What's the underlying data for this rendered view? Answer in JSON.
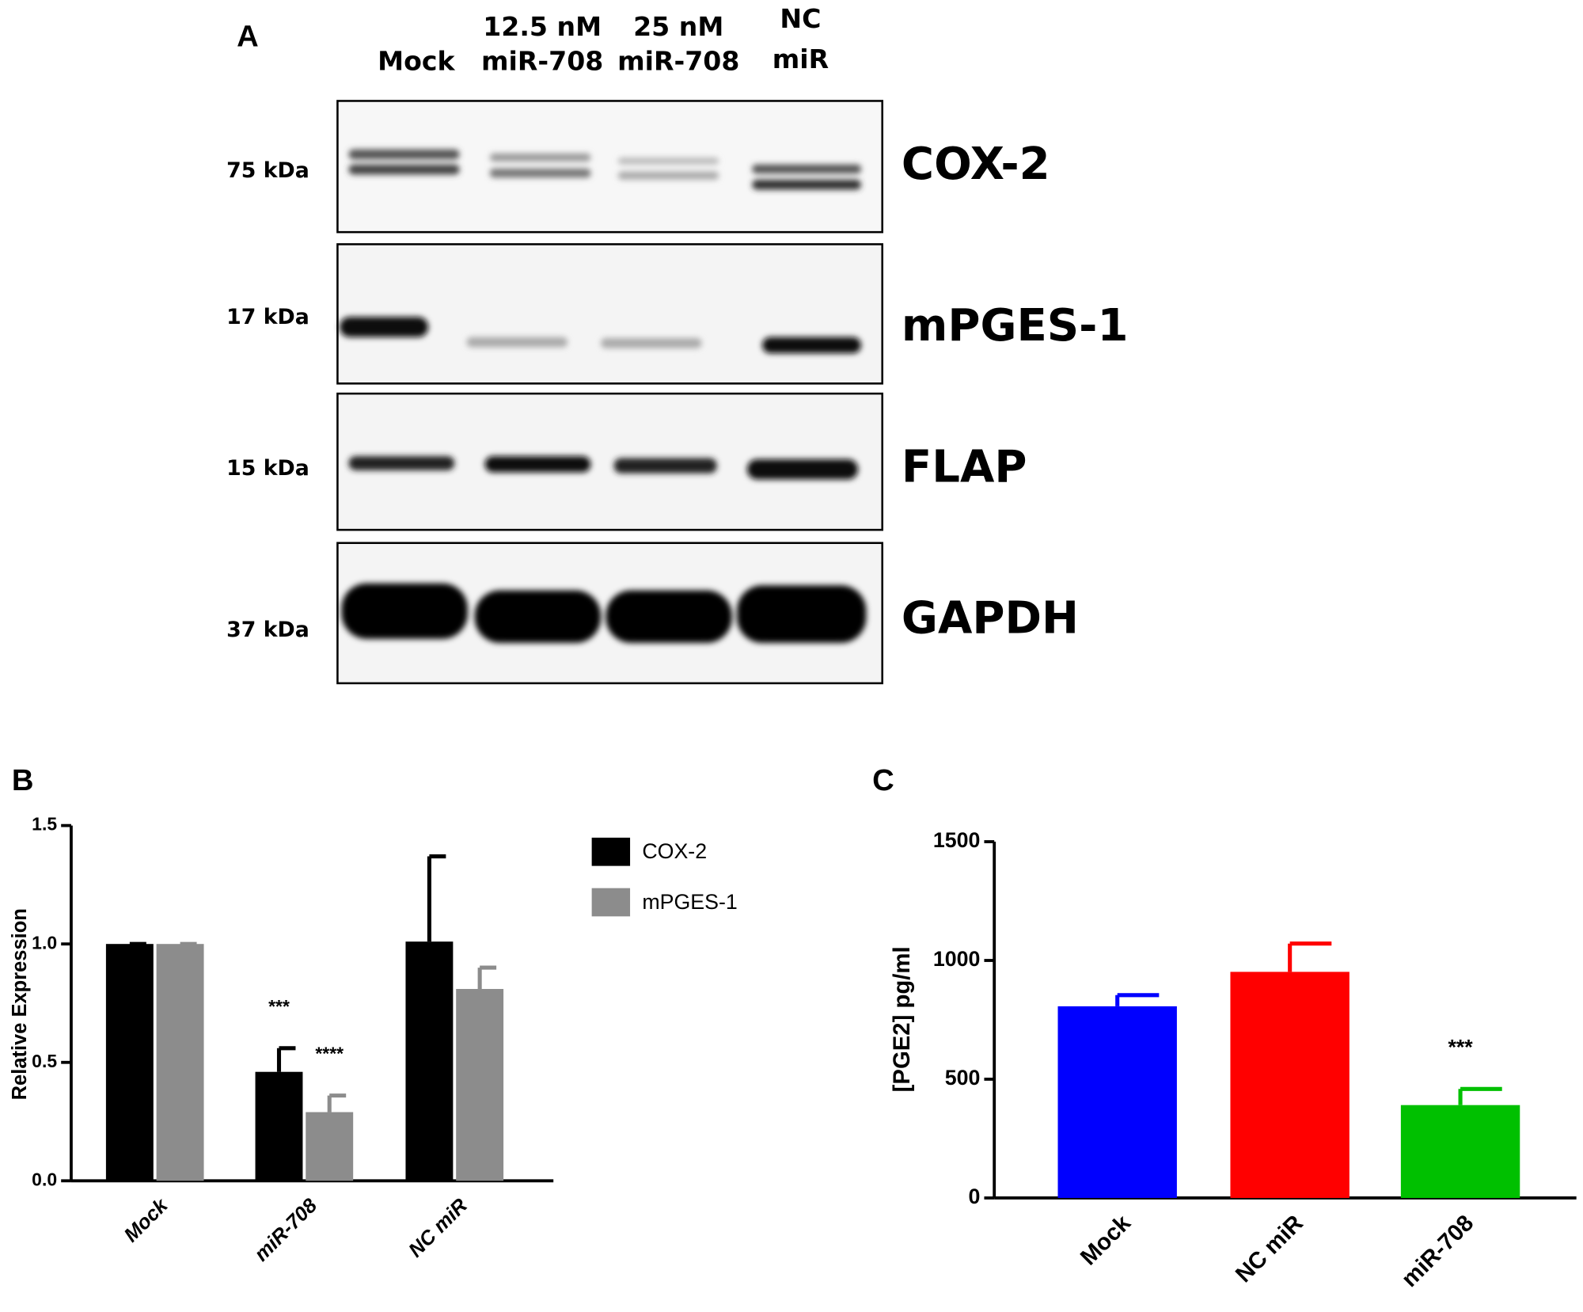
{
  "blot": {
    "panel_label": "A",
    "lanes": [
      [
        "Mock"
      ],
      [
        "12.5 nM",
        "miR-708"
      ],
      [
        "25 nM",
        "miR-708"
      ],
      [
        "NC",
        "miR"
      ]
    ],
    "rows": [
      {
        "marker": "75 kDa",
        "protein": "COX-2"
      },
      {
        "marker": "17 kDa",
        "protein": "mPGES-1"
      },
      {
        "marker": "15 kDa",
        "protein": "FLAP"
      },
      {
        "marker": "37 kDa",
        "protein": "GAPDH"
      }
    ]
  },
  "chart_data": [
    {
      "type": "bar",
      "panel_label": "B",
      "y_label": "Relative Expression",
      "categories": [
        "Mock",
        "miR-708",
        "NC miR"
      ],
      "series": [
        {
          "name": "COX-2",
          "color": "#000000",
          "values": [
            1.0,
            0.46,
            1.01
          ],
          "errors": [
            0,
            0.1,
            0.36
          ],
          "significance": [
            null,
            "***",
            null
          ]
        },
        {
          "name": "mPGES-1",
          "color": "#8c8c8c",
          "values": [
            1.0,
            0.29,
            0.81
          ],
          "errors": [
            0,
            0.07,
            0.09
          ],
          "significance": [
            null,
            "****",
            null
          ]
        }
      ],
      "ylim": [
        0,
        1.5
      ],
      "yticks": [
        {
          "value": 0,
          "label": "0.0"
        },
        0.5,
        {
          "value": 1,
          "label": "1.0"
        },
        1.5
      ],
      "legend": "right"
    },
    {
      "type": "bar",
      "panel_label": "C",
      "y_label": "[PGE2] pg/ml",
      "categories": [
        "Mock",
        "NC miR",
        "miR-708"
      ],
      "values": [
        807,
        952,
        391
      ],
      "errors": [
        47,
        119,
        68
      ],
      "colors": [
        "#0000ff",
        "#ff0000",
        "#00c000"
      ],
      "significance": [
        null,
        null,
        "***"
      ],
      "ylim": [
        0,
        1500
      ],
      "yticks": [
        0,
        500,
        1000,
        1500
      ]
    }
  ]
}
